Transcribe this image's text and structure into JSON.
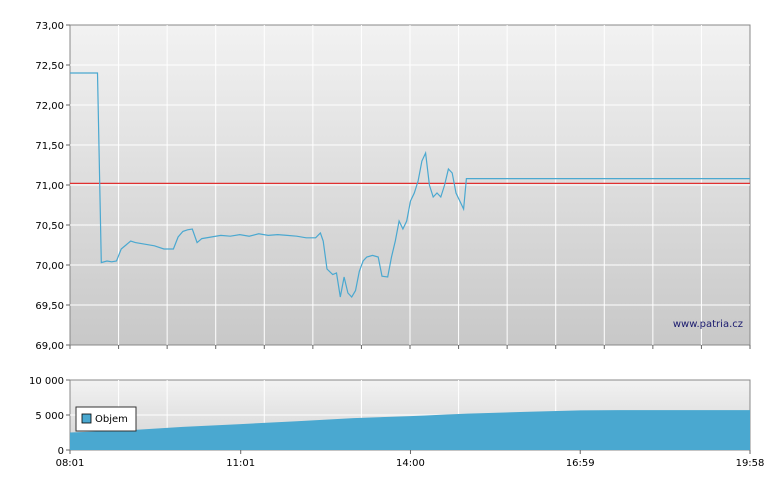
{
  "chart_data": [
    {
      "type": "line",
      "y_tick_labels": [
        "69,00",
        "69,50",
        "70,00",
        "70,50",
        "71,00",
        "71,50",
        "72,00",
        "72,50",
        "73,00"
      ],
      "ylim": [
        69,
        73
      ],
      "xlim_minutes": [
        481,
        1198
      ],
      "reference_line": 71.02,
      "watermark": "www.patria.cz",
      "grid": true,
      "series": [
        {
          "points": [
            [
              481,
              72.4
            ],
            [
              510,
              72.4
            ],
            [
              514,
              70.03
            ],
            [
              520,
              70.05
            ],
            [
              525,
              70.04
            ],
            [
              530,
              70.05
            ],
            [
              535,
              70.2
            ],
            [
              540,
              70.25
            ],
            [
              545,
              70.3
            ],
            [
              550,
              70.28
            ],
            [
              560,
              70.26
            ],
            [
              570,
              70.24
            ],
            [
              580,
              70.2
            ],
            [
              590,
              70.2
            ],
            [
              595,
              70.35
            ],
            [
              600,
              70.42
            ],
            [
              605,
              70.44
            ],
            [
              610,
              70.45
            ],
            [
              615,
              70.28
            ],
            [
              620,
              70.33
            ],
            [
              630,
              70.35
            ],
            [
              640,
              70.37
            ],
            [
              650,
              70.36
            ],
            [
              660,
              70.38
            ],
            [
              670,
              70.36
            ],
            [
              680,
              70.39
            ],
            [
              690,
              70.37
            ],
            [
              700,
              70.38
            ],
            [
              710,
              70.37
            ],
            [
              720,
              70.36
            ],
            [
              730,
              70.34
            ],
            [
              740,
              70.34
            ],
            [
              745,
              70.4
            ],
            [
              748,
              70.3
            ],
            [
              752,
              69.95
            ],
            [
              758,
              69.88
            ],
            [
              762,
              69.9
            ],
            [
              766,
              69.6
            ],
            [
              770,
              69.85
            ],
            [
              774,
              69.65
            ],
            [
              778,
              69.6
            ],
            [
              782,
              69.68
            ],
            [
              786,
              69.92
            ],
            [
              790,
              70.05
            ],
            [
              794,
              70.1
            ],
            [
              800,
              70.12
            ],
            [
              806,
              70.1
            ],
            [
              810,
              69.86
            ],
            [
              816,
              69.85
            ],
            [
              820,
              70.1
            ],
            [
              824,
              70.3
            ],
            [
              828,
              70.55
            ],
            [
              832,
              70.45
            ],
            [
              836,
              70.55
            ],
            [
              840,
              70.8
            ],
            [
              844,
              70.9
            ],
            [
              848,
              71.05
            ],
            [
              852,
              71.3
            ],
            [
              856,
              71.4
            ],
            [
              860,
              71.0
            ],
            [
              864,
              70.85
            ],
            [
              868,
              70.9
            ],
            [
              872,
              70.85
            ],
            [
              876,
              71.0
            ],
            [
              880,
              71.2
            ],
            [
              884,
              71.15
            ],
            [
              888,
              70.9
            ],
            [
              892,
              70.8
            ],
            [
              896,
              70.7
            ],
            [
              899,
              71.08
            ],
            [
              1198,
              71.08
            ]
          ]
        }
      ]
    },
    {
      "type": "area",
      "y_tick_labels": [
        "0",
        "5 000",
        "10 000"
      ],
      "ylim": [
        0,
        10000
      ],
      "x_tick_labels": [
        "08:01",
        "11:01",
        "14:00",
        "16:59",
        "19:58"
      ],
      "x_tick_minutes": [
        481,
        661,
        840,
        1019,
        1198
      ],
      "xlim_minutes": [
        481,
        1198
      ],
      "legend_position": "top-left",
      "series": [
        {
          "name": "Objem",
          "color": "#4aa8d0",
          "points": [
            [
              481,
              2500
            ],
            [
              540,
              2800
            ],
            [
              600,
              3300
            ],
            [
              661,
              3700
            ],
            [
              720,
              4100
            ],
            [
              780,
              4550
            ],
            [
              840,
              4850
            ],
            [
              900,
              5200
            ],
            [
              960,
              5450
            ],
            [
              1019,
              5650
            ],
            [
              1060,
              5700
            ],
            [
              1198,
              5700
            ]
          ]
        }
      ]
    }
  ]
}
